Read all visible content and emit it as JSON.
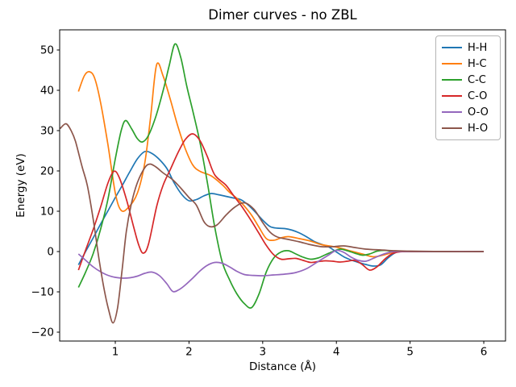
{
  "figure": {
    "kind": "matplotlib-line-plot",
    "background": "#ffffff"
  },
  "chart_data": {
    "type": "line",
    "title": "Dimer curves - no ZBL",
    "xlabel": "Distance (Å)",
    "ylabel": "Energy (eV)",
    "xlim": [
      0.245,
      6.295
    ],
    "ylim": [
      -22.2,
      55.0
    ],
    "xticks": [
      1,
      2,
      3,
      4,
      5,
      6
    ],
    "yticks": [
      -20,
      -10,
      0,
      10,
      20,
      30,
      40,
      50
    ],
    "ytick_labels": [
      "−20",
      "−10",
      "0",
      "10",
      "20",
      "30",
      "40",
      "50"
    ],
    "grid": false,
    "legend_position": "upper right",
    "axis_color": "#000000",
    "series": [
      {
        "name": "H-H",
        "color": "#1f77b4",
        "points": [
          [
            0.5,
            -3.3
          ],
          [
            0.6,
            0.1
          ],
          [
            0.7,
            3.4
          ],
          [
            0.8,
            6.8
          ],
          [
            0.9,
            10.1
          ],
          [
            1.0,
            13.4
          ],
          [
            1.1,
            16.6
          ],
          [
            1.2,
            19.9
          ],
          [
            1.3,
            23.0
          ],
          [
            1.4,
            24.8
          ],
          [
            1.5,
            24.3
          ],
          [
            1.6,
            22.8
          ],
          [
            1.7,
            20.6
          ],
          [
            1.8,
            17.0
          ],
          [
            1.9,
            14.2
          ],
          [
            2.0,
            12.6
          ],
          [
            2.1,
            12.9
          ],
          [
            2.2,
            13.8
          ],
          [
            2.3,
            14.4
          ],
          [
            2.4,
            14.1
          ],
          [
            2.5,
            13.7
          ],
          [
            2.6,
            13.3
          ],
          [
            2.7,
            12.9
          ],
          [
            2.8,
            11.6
          ],
          [
            2.9,
            9.8
          ],
          [
            3.0,
            7.8
          ],
          [
            3.1,
            6.2
          ],
          [
            3.2,
            5.8
          ],
          [
            3.3,
            5.7
          ],
          [
            3.4,
            5.3
          ],
          [
            3.5,
            4.6
          ],
          [
            3.6,
            3.6
          ],
          [
            3.7,
            2.5
          ],
          [
            3.8,
            1.8
          ],
          [
            3.9,
            1.1
          ],
          [
            4.0,
            -0.1
          ],
          [
            4.1,
            -1.3
          ],
          [
            4.2,
            -2.1
          ],
          [
            4.3,
            -2.7
          ],
          [
            4.4,
            -3.2
          ],
          [
            4.5,
            -3.6
          ],
          [
            4.6,
            -3.3
          ],
          [
            4.7,
            -1.6
          ],
          [
            4.8,
            -0.3
          ],
          [
            4.9,
            0
          ],
          [
            5.25,
            0
          ],
          [
            5.6,
            0
          ],
          [
            6.0,
            0
          ]
        ]
      },
      {
        "name": "H-C",
        "color": "#ff7f0e",
        "points": [
          [
            0.5,
            39.7
          ],
          [
            0.58,
            43.6
          ],
          [
            0.65,
            44.6
          ],
          [
            0.72,
            43.0
          ],
          [
            0.8,
            37.0
          ],
          [
            0.9,
            26.5
          ],
          [
            1.0,
            14.5
          ],
          [
            1.08,
            10.2
          ],
          [
            1.18,
            11.0
          ],
          [
            1.3,
            14.5
          ],
          [
            1.4,
            22.0
          ],
          [
            1.48,
            33.5
          ],
          [
            1.56,
            46.3
          ],
          [
            1.65,
            43.5
          ],
          [
            1.75,
            37.5
          ],
          [
            1.85,
            31.0
          ],
          [
            1.95,
            25.5
          ],
          [
            2.05,
            21.5
          ],
          [
            2.15,
            19.9
          ],
          [
            2.3,
            18.8
          ],
          [
            2.45,
            16.6
          ],
          [
            2.55,
            14.7
          ],
          [
            2.65,
            13.2
          ],
          [
            2.75,
            11.3
          ],
          [
            2.85,
            9.0
          ],
          [
            2.95,
            6.0
          ],
          [
            3.05,
            3.2
          ],
          [
            3.15,
            2.8
          ],
          [
            3.25,
            3.4
          ],
          [
            3.35,
            3.7
          ],
          [
            3.5,
            3.2
          ],
          [
            3.65,
            2.6
          ],
          [
            3.8,
            1.7
          ],
          [
            4.0,
            1.1
          ],
          [
            4.2,
            0.1
          ],
          [
            4.35,
            -0.6
          ],
          [
            4.5,
            -1.3
          ],
          [
            4.65,
            -0.8
          ],
          [
            4.8,
            -0.1
          ],
          [
            5.0,
            0
          ],
          [
            5.5,
            0
          ],
          [
            6.0,
            0
          ]
        ]
      },
      {
        "name": "C-C",
        "color": "#2ca02c",
        "points": [
          [
            0.5,
            -8.9
          ],
          [
            0.6,
            -5.0
          ],
          [
            0.7,
            -0.5
          ],
          [
            0.8,
            5.5
          ],
          [
            0.9,
            13.0
          ],
          [
            1.0,
            23.0
          ],
          [
            1.08,
            30.0
          ],
          [
            1.14,
            32.5
          ],
          [
            1.22,
            30.5
          ],
          [
            1.3,
            28.0
          ],
          [
            1.37,
            27.2
          ],
          [
            1.45,
            28.8
          ],
          [
            1.55,
            33.5
          ],
          [
            1.65,
            40.0
          ],
          [
            1.73,
            46.0
          ],
          [
            1.81,
            51.5
          ],
          [
            1.89,
            48.0
          ],
          [
            1.97,
            41.0
          ],
          [
            2.05,
            35.0
          ],
          [
            2.15,
            27.0
          ],
          [
            2.25,
            17.0
          ],
          [
            2.35,
            6.0
          ],
          [
            2.45,
            -2.5
          ],
          [
            2.55,
            -7.0
          ],
          [
            2.65,
            -10.5
          ],
          [
            2.75,
            -12.9
          ],
          [
            2.85,
            -13.9
          ],
          [
            2.95,
            -10.5
          ],
          [
            3.05,
            -5.0
          ],
          [
            3.15,
            -1.6
          ],
          [
            3.25,
            -0.1
          ],
          [
            3.35,
            0.2
          ],
          [
            3.45,
            -0.6
          ],
          [
            3.55,
            -1.4
          ],
          [
            3.65,
            -1.9
          ],
          [
            3.75,
            -1.6
          ],
          [
            3.85,
            -0.8
          ],
          [
            3.95,
            0.0
          ],
          [
            4.05,
            0.6
          ],
          [
            4.15,
            0.2
          ],
          [
            4.25,
            -0.4
          ],
          [
            4.35,
            -0.9
          ],
          [
            4.45,
            -0.6
          ],
          [
            4.55,
            0.1
          ],
          [
            4.65,
            0.3
          ],
          [
            4.75,
            0.1
          ],
          [
            4.9,
            0
          ],
          [
            5.4,
            0
          ],
          [
            6.0,
            0
          ]
        ]
      },
      {
        "name": "C-O",
        "color": "#d62728",
        "points": [
          [
            0.5,
            -4.6
          ],
          [
            0.6,
            0.5
          ],
          [
            0.7,
            5.5
          ],
          [
            0.8,
            11.0
          ],
          [
            0.9,
            17.0
          ],
          [
            0.98,
            19.9
          ],
          [
            1.05,
            18.5
          ],
          [
            1.15,
            13.0
          ],
          [
            1.25,
            6.0
          ],
          [
            1.32,
            1.5
          ],
          [
            1.38,
            -0.4
          ],
          [
            1.45,
            1.8
          ],
          [
            1.56,
            11.1
          ],
          [
            1.65,
            16.5
          ],
          [
            1.75,
            20.5
          ],
          [
            1.85,
            24.5
          ],
          [
            1.95,
            27.8
          ],
          [
            2.05,
            29.2
          ],
          [
            2.15,
            27.5
          ],
          [
            2.25,
            23.5
          ],
          [
            2.35,
            19.0
          ],
          [
            2.5,
            16.5
          ],
          [
            2.6,
            14.0
          ],
          [
            2.72,
            11.1
          ],
          [
            2.85,
            7.5
          ],
          [
            2.95,
            4.5
          ],
          [
            3.05,
            1.5
          ],
          [
            3.15,
            -0.8
          ],
          [
            3.25,
            -1.9
          ],
          [
            3.35,
            -1.8
          ],
          [
            3.45,
            -1.7
          ],
          [
            3.55,
            -2.2
          ],
          [
            3.65,
            -2.7
          ],
          [
            3.75,
            -2.5
          ],
          [
            3.85,
            -2.3
          ],
          [
            3.95,
            -2.4
          ],
          [
            4.05,
            -2.6
          ],
          [
            4.15,
            -2.4
          ],
          [
            4.25,
            -2.2
          ],
          [
            4.35,
            -3.2
          ],
          [
            4.45,
            -4.6
          ],
          [
            4.55,
            -3.8
          ],
          [
            4.65,
            -2.0
          ],
          [
            4.75,
            -0.6
          ],
          [
            4.85,
            -0.1
          ],
          [
            5.0,
            0
          ],
          [
            5.5,
            0
          ],
          [
            6.0,
            0
          ]
        ]
      },
      {
        "name": "O-O",
        "color": "#9467bd",
        "points": [
          [
            0.5,
            -0.6
          ],
          [
            0.6,
            -2.2
          ],
          [
            0.7,
            -3.8
          ],
          [
            0.8,
            -5.0
          ],
          [
            0.9,
            -5.9
          ],
          [
            1.0,
            -6.4
          ],
          [
            1.1,
            -6.6
          ],
          [
            1.2,
            -6.5
          ],
          [
            1.3,
            -6.1
          ],
          [
            1.4,
            -5.4
          ],
          [
            1.5,
            -5.1
          ],
          [
            1.6,
            -6.0
          ],
          [
            1.7,
            -8.0
          ],
          [
            1.78,
            -9.9
          ],
          [
            1.86,
            -9.5
          ],
          [
            1.95,
            -8.3
          ],
          [
            2.05,
            -6.6
          ],
          [
            2.15,
            -4.8
          ],
          [
            2.25,
            -3.4
          ],
          [
            2.35,
            -2.7
          ],
          [
            2.45,
            -2.9
          ],
          [
            2.55,
            -3.8
          ],
          [
            2.65,
            -4.9
          ],
          [
            2.75,
            -5.7
          ],
          [
            2.85,
            -5.9
          ],
          [
            3.0,
            -6.0
          ],
          [
            3.15,
            -5.8
          ],
          [
            3.3,
            -5.6
          ],
          [
            3.45,
            -5.2
          ],
          [
            3.6,
            -4.2
          ],
          [
            3.75,
            -2.5
          ],
          [
            3.9,
            -0.8
          ],
          [
            4.0,
            0.3
          ],
          [
            4.1,
            -0.2
          ],
          [
            4.2,
            -1.4
          ],
          [
            4.3,
            -2.2
          ],
          [
            4.4,
            -2.4
          ],
          [
            4.5,
            -1.7
          ],
          [
            4.6,
            -0.9
          ],
          [
            4.7,
            -0.3
          ],
          [
            4.8,
            0
          ],
          [
            5.2,
            0
          ],
          [
            5.6,
            0
          ],
          [
            6.0,
            0
          ]
        ]
      },
      {
        "name": "H-O",
        "color": "#8c564b",
        "points": [
          [
            0.25,
            30.5
          ],
          [
            0.33,
            31.7
          ],
          [
            0.4,
            30.0
          ],
          [
            0.46,
            27.3
          ],
          [
            0.55,
            21.0
          ],
          [
            0.62,
            16.4
          ],
          [
            0.7,
            8.0
          ],
          [
            0.78,
            -2.0
          ],
          [
            0.85,
            -9.5
          ],
          [
            0.91,
            -14.5
          ],
          [
            0.97,
            -17.7
          ],
          [
            1.03,
            -14.0
          ],
          [
            1.09,
            -5.0
          ],
          [
            1.15,
            5.0
          ],
          [
            1.22,
            12.0
          ],
          [
            1.3,
            17.1
          ],
          [
            1.4,
            20.8
          ],
          [
            1.47,
            21.7
          ],
          [
            1.55,
            21.0
          ],
          [
            1.65,
            19.5
          ],
          [
            1.78,
            17.8
          ],
          [
            1.9,
            15.5
          ],
          [
            2.0,
            13.4
          ],
          [
            2.1,
            11.5
          ],
          [
            2.2,
            7.5
          ],
          [
            2.28,
            6.2
          ],
          [
            2.38,
            6.6
          ],
          [
            2.5,
            9.0
          ],
          [
            2.62,
            11.0
          ],
          [
            2.75,
            12.1
          ],
          [
            2.88,
            10.5
          ],
          [
            3.0,
            7.2
          ],
          [
            3.1,
            4.8
          ],
          [
            3.2,
            3.6
          ],
          [
            3.35,
            3.0
          ],
          [
            3.5,
            2.4
          ],
          [
            3.65,
            1.7
          ],
          [
            3.8,
            1.2
          ],
          [
            3.95,
            1.2
          ],
          [
            4.1,
            1.4
          ],
          [
            4.25,
            1.0
          ],
          [
            4.4,
            0.6
          ],
          [
            4.6,
            0.4
          ],
          [
            4.8,
            0.2
          ],
          [
            5.0,
            0.1
          ],
          [
            5.5,
            0
          ],
          [
            6.0,
            0
          ]
        ]
      }
    ]
  },
  "legend": {
    "entries": [
      {
        "label": "H-H",
        "color": "#1f77b4"
      },
      {
        "label": "H-C",
        "color": "#ff7f0e"
      },
      {
        "label": "C-C",
        "color": "#2ca02c"
      },
      {
        "label": "C-O",
        "color": "#d62728"
      },
      {
        "label": "O-O",
        "color": "#9467bd"
      },
      {
        "label": "H-O",
        "color": "#8c564b"
      }
    ]
  }
}
